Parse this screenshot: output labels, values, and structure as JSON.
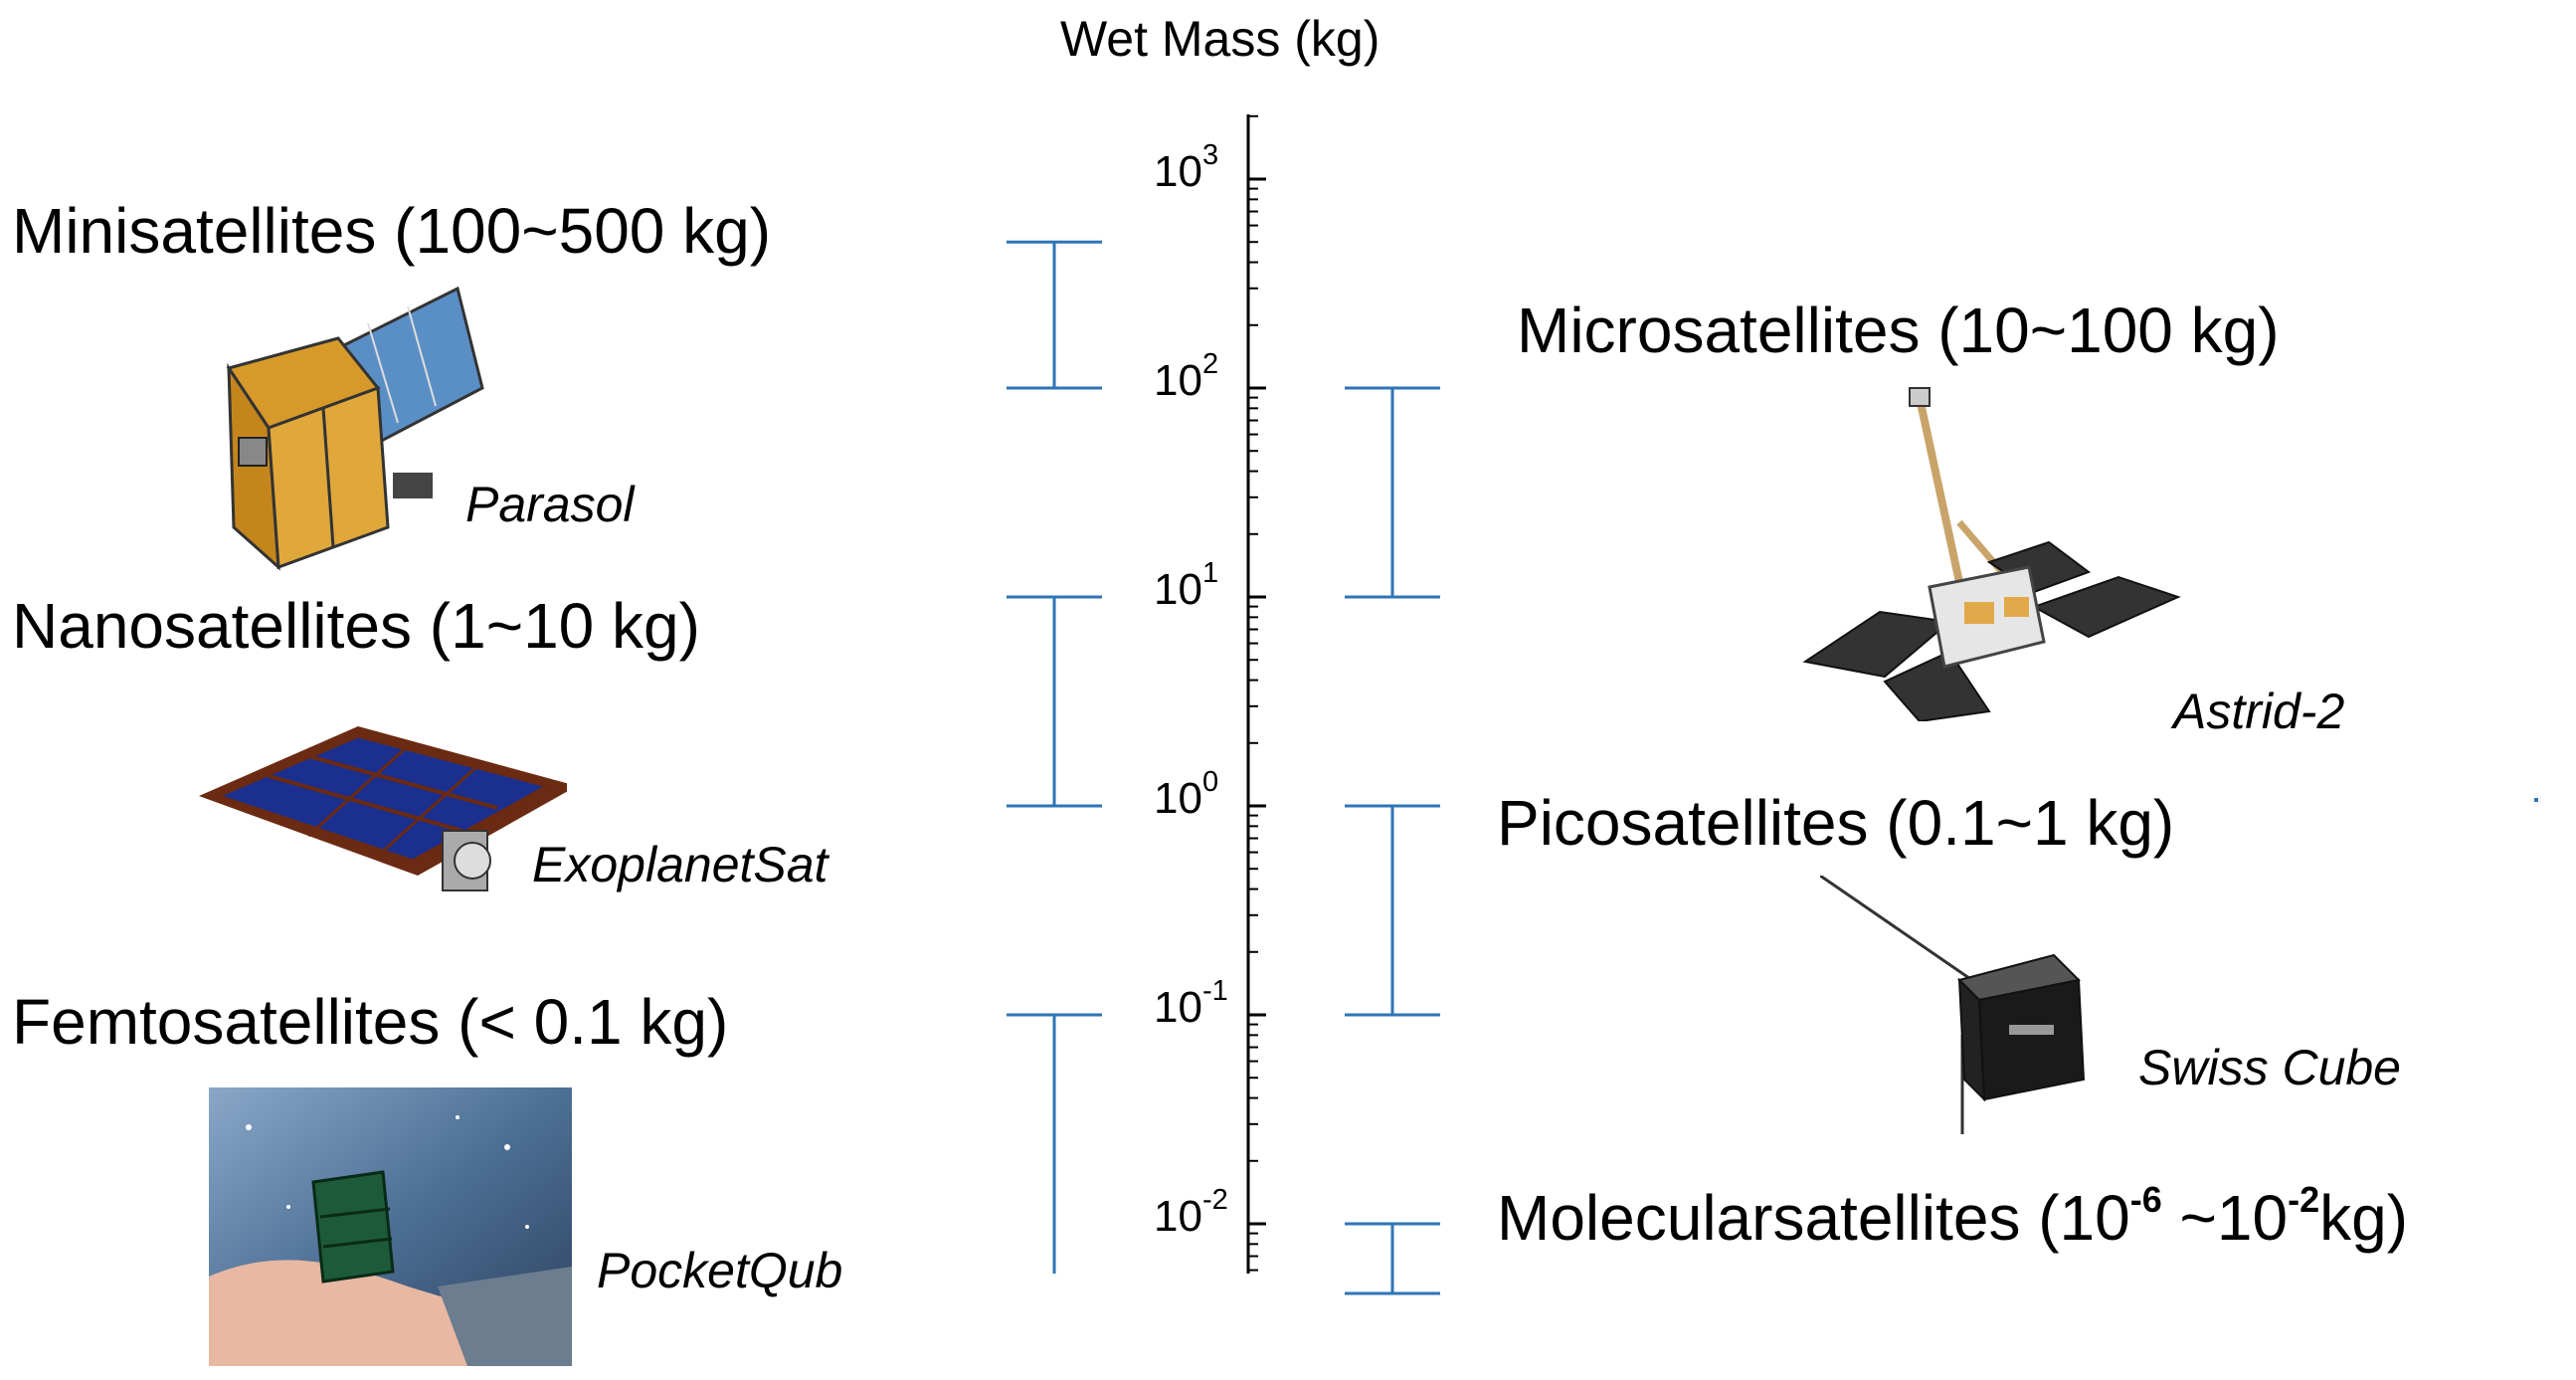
{
  "axis": {
    "title": "Wet Mass (kg)",
    "ticks": [
      {
        "base": "10",
        "exp": "3"
      },
      {
        "base": "10",
        "exp": "2"
      },
      {
        "base": "10",
        "exp": "1"
      },
      {
        "base": "10",
        "exp": "0"
      },
      {
        "base": "10",
        "exp": "-1"
      },
      {
        "base": "10",
        "exp": "-2"
      }
    ],
    "scale": "log"
  },
  "categories": [
    {
      "name": "Minisatellites (100~500 kg)",
      "example": "Parasol",
      "range_kg": [
        100,
        500
      ]
    },
    {
      "name": "Microsatellites (10~100 kg)",
      "example": "Astrid-2",
      "range_kg": [
        10,
        100
      ]
    },
    {
      "name": "Nanosatellites (1~10 kg)",
      "example": "ExoplanetSat",
      "range_kg": [
        1,
        10
      ]
    },
    {
      "name": "Picosatellites (0.1~1 kg)",
      "example": "Swiss Cube",
      "range_kg": [
        0.1,
        1
      ]
    },
    {
      "name": "Femtosatellites (< 0.1 kg)",
      "example": "PocketQub",
      "range_kg": [
        0.005,
        0.1
      ]
    },
    {
      "name_prefix": "Molecularsatellites (10",
      "exp1": "-6",
      "name_mid": " ~10",
      "exp2": "-2",
      "name_suffix": "kg)",
      "range_kg": [
        1e-06,
        0.01
      ]
    }
  ],
  "colors": {
    "range_bar": "#2e75b6",
    "axis": "#000000"
  },
  "icons": [
    "parasol-satellite",
    "astrid2-satellite",
    "exoplanetsat-satellite",
    "swisscube-satellite",
    "pocketqub-photo"
  ]
}
